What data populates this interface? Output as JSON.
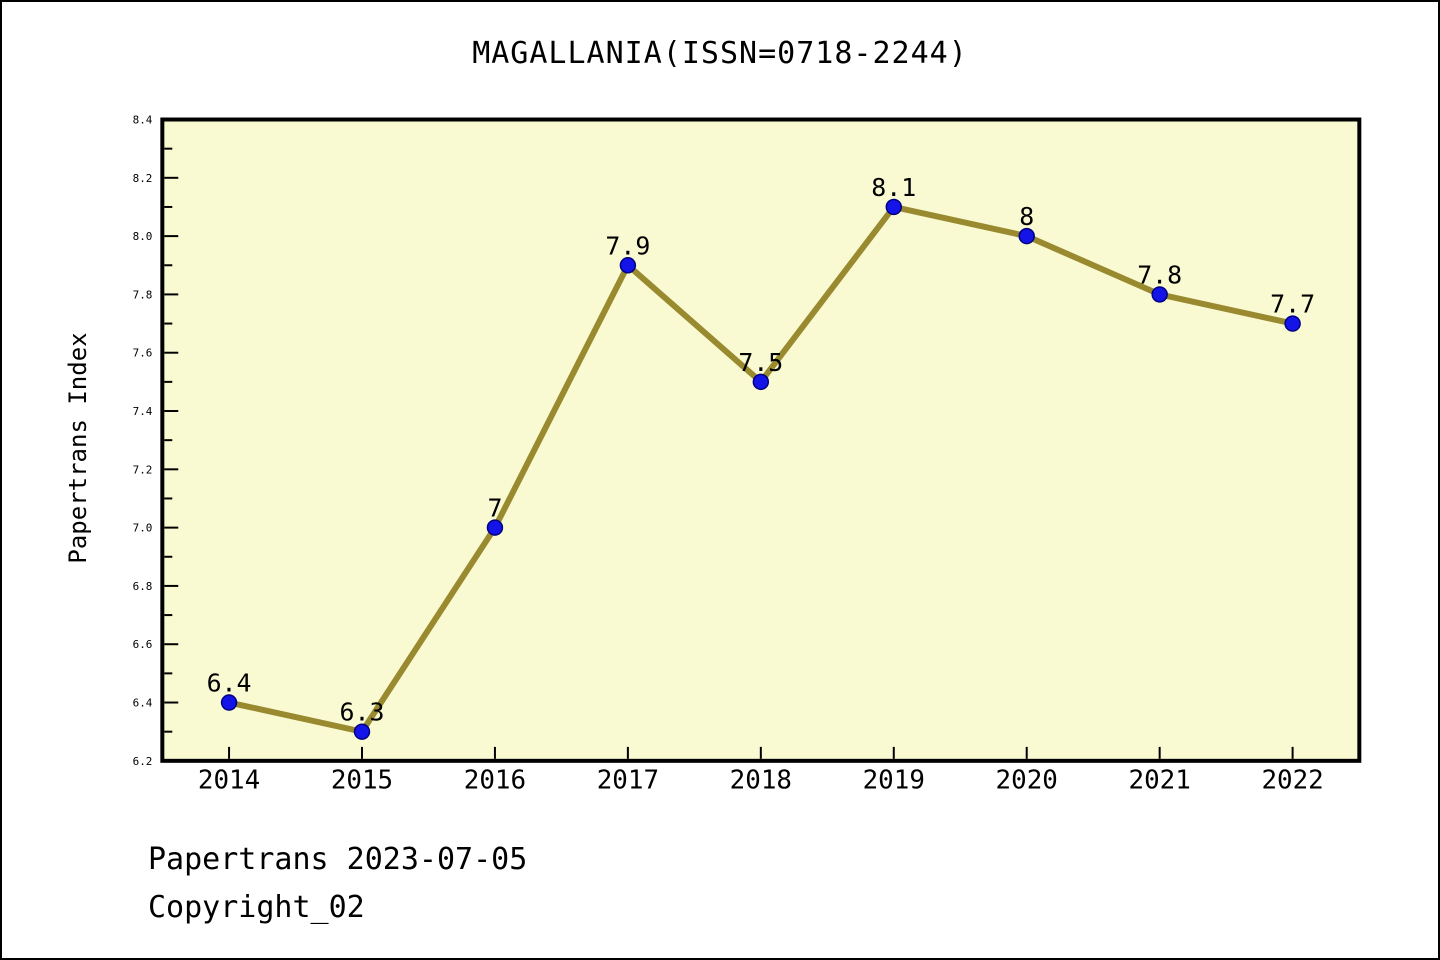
{
  "title": "MAGALLANIA(ISSN=0718-2244)",
  "y_axis_label": "Papertrans Index",
  "footer": {
    "line1": "Papertrans 2023-07-05",
    "line2": "Copyright_02"
  },
  "chart_data": {
    "type": "line",
    "title": "MAGALLANIA(ISSN=0718-2244)",
    "categories": [
      "2014",
      "2015",
      "2016",
      "2017",
      "2018",
      "2019",
      "2020",
      "2021",
      "2022"
    ],
    "values": [
      6.4,
      6.3,
      7,
      7.9,
      7.5,
      8.1,
      8,
      7.8,
      7.7
    ],
    "point_labels": [
      "6.4",
      "6.3",
      "7",
      "7.9",
      "7.5",
      "8.1",
      "8",
      "7.8",
      "7.7"
    ],
    "xlabel": "",
    "ylabel": "Papertrans Index",
    "ylim": [
      6.2,
      8.4
    ],
    "y_major_step": 0.2,
    "y_minor_step": 0.1,
    "grid": false,
    "legend_position": "none",
    "colors": {
      "line": "#998A30",
      "marker_fill": "#1414E8",
      "marker_edge": "#000080",
      "plot_bg": "#FAFAD2",
      "page_bg": "#FFFFFF",
      "axis": "#000000",
      "text": "#000000"
    }
  }
}
